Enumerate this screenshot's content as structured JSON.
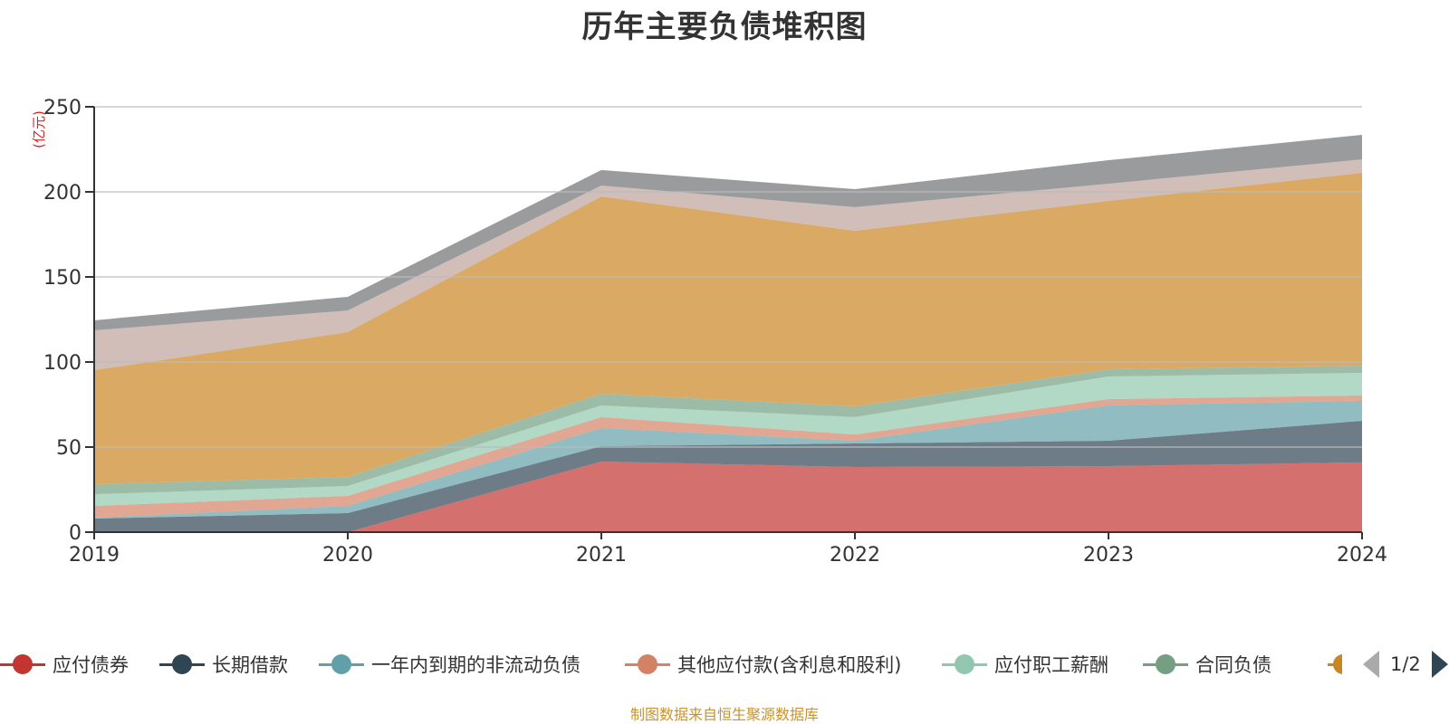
{
  "title": "历年主要负债堆积图",
  "source_note": "制图数据来自恒生聚源数据库",
  "legend": {
    "page_indicator": "1/2",
    "items": [
      {
        "name": "应付债券",
        "color": "#c23531"
      },
      {
        "name": "长期借款",
        "color": "#2f4554"
      },
      {
        "name": "一年内到期的非流动负债",
        "color": "#61a0a8"
      },
      {
        "name": "其他应付款(含利息和股利)",
        "color": "#d48265"
      },
      {
        "name": "应付职工薪酬",
        "color": "#91c7ae"
      },
      {
        "name": "合同负债",
        "color": "#749f83"
      }
    ],
    "partial_item_color": "#ca8622"
  },
  "chart_data": {
    "type": "area",
    "stacked": true,
    "title": "历年主要负债堆积图",
    "ylabel": "(亿元)",
    "xlabel": "",
    "ylim": [
      0,
      250
    ],
    "yticks": [
      "0",
      "50",
      "100",
      "150",
      "200",
      "250"
    ],
    "categories": [
      "2019",
      "2020",
      "2021",
      "2022",
      "2023",
      "2024"
    ],
    "grid": true,
    "legend_position": "bottom",
    "series": [
      {
        "name": "应付债券",
        "color": "#c23531",
        "values": [
          0,
          0,
          41.5,
          38.3,
          38.8,
          41.0
        ]
      },
      {
        "name": "长期借款",
        "color": "#2f4554",
        "values": [
          8.0,
          11.2,
          9.0,
          13.8,
          14.9,
          24.4
        ]
      },
      {
        "name": "一年内到期的非流动负债",
        "color": "#61a0a8",
        "values": [
          0.5,
          4.2,
          10.7,
          1.6,
          20.8,
          11.7
        ]
      },
      {
        "name": "其他应付款(含利息和股利)",
        "color": "#d48265",
        "values": [
          6.9,
          5.9,
          6.4,
          3.7,
          3.7,
          3.2
        ]
      },
      {
        "name": "应付职工薪酬",
        "color": "#91c7ae",
        "values": [
          6.9,
          5.8,
          6.9,
          10.2,
          13.3,
          13.3
        ]
      },
      {
        "name": "合同负债",
        "color": "#749f83",
        "values": [
          5.9,
          5.3,
          6.9,
          6.3,
          4.2,
          4.3
        ]
      },
      {
        "name": "",
        "color": "#ca8622",
        "values": [
          67.0,
          85.2,
          115.9,
          103.2,
          99.0,
          113.3
        ]
      },
      {
        "name": "",
        "color": "#bda29a",
        "values": [
          23.4,
          12.7,
          6.4,
          13.9,
          10.1,
          7.9
        ]
      },
      {
        "name": "",
        "color": "#6e7074",
        "values": [
          5.9,
          8.0,
          9.1,
          10.6,
          13.8,
          14.4
        ]
      }
    ]
  }
}
